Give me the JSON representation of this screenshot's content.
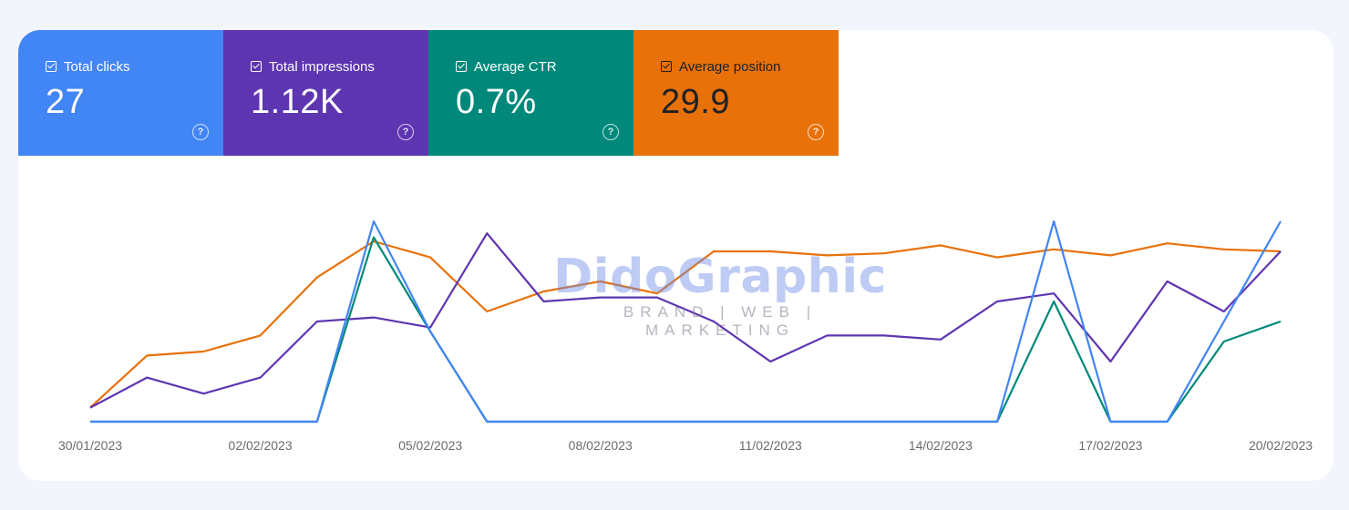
{
  "metrics": [
    {
      "label": "Total clicks",
      "value": "27",
      "color": "#4285f4",
      "text_color": "#ffffff",
      "help_icon": "help-circle-icon"
    },
    {
      "label": "Total impressions",
      "value": "1.12K",
      "color": "#5e35b1",
      "text_color": "#ffffff",
      "help_icon": "help-circle-icon"
    },
    {
      "label": "Average CTR",
      "value": "0.7%",
      "color": "#00897b",
      "text_color": "#ffffff",
      "help_icon": "help-circle-icon"
    },
    {
      "label": "Average position",
      "value": "29.9",
      "color": "#e8710a",
      "text_color": "#202124",
      "help_icon": "help-circle-icon"
    }
  ],
  "watermark": {
    "name": "DidoGraphic",
    "tagline": "BRAND | WEB | MARKETING"
  },
  "chart_data": {
    "type": "line",
    "x": [
      "30/01/2023",
      "31/01/2023",
      "01/02/2023",
      "02/02/2023",
      "03/02/2023",
      "04/02/2023",
      "05/02/2023",
      "06/02/2023",
      "07/02/2023",
      "08/02/2023",
      "09/02/2023",
      "10/02/2023",
      "11/02/2023",
      "12/02/2023",
      "13/02/2023",
      "14/02/2023",
      "15/02/2023",
      "16/02/2023",
      "17/02/2023",
      "18/02/2023",
      "19/02/2023",
      "20/02/2023"
    ],
    "x_tick_labels": [
      "30/01/2023",
      "02/02/2023",
      "05/02/2023",
      "08/02/2023",
      "11/02/2023",
      "14/02/2023",
      "17/02/2023",
      "20/02/2023"
    ],
    "y_axis_labels": "not shown",
    "series": [
      {
        "name": "Total clicks",
        "color": "#4285f4",
        "values": [
          0,
          0,
          0,
          0,
          0,
          1,
          0.45,
          0,
          0,
          0,
          0,
          0,
          0,
          0,
          0,
          0,
          0,
          1,
          0,
          0,
          0.5,
          1
        ]
      },
      {
        "name": "Total impressions",
        "color": "#5e35b1",
        "values": [
          0.07,
          0.22,
          0.14,
          0.22,
          0.5,
          0.52,
          0.47,
          0.94,
          0.6,
          0.62,
          0.62,
          0.5,
          0.3,
          0.43,
          0.43,
          0.41,
          0.6,
          0.64,
          0.3,
          0.7,
          0.55,
          0.85
        ]
      },
      {
        "name": "Average CTR",
        "color": "#00897b",
        "values": [
          0,
          0,
          0,
          0,
          0,
          0.92,
          0.45,
          0,
          0,
          0,
          0,
          0,
          0,
          0,
          0,
          0,
          0,
          0.6,
          0,
          0,
          0.4,
          0.5
        ]
      },
      {
        "name": "Average position",
        "color": "#e8710a",
        "values": [
          0.07,
          0.33,
          0.35,
          0.43,
          0.72,
          0.9,
          0.82,
          0.55,
          0.65,
          0.7,
          0.64,
          0.85,
          0.85,
          0.83,
          0.84,
          0.88,
          0.82,
          0.86,
          0.83,
          0.89,
          0.86,
          0.85
        ]
      }
    ],
    "grid": false,
    "legend": "none"
  }
}
